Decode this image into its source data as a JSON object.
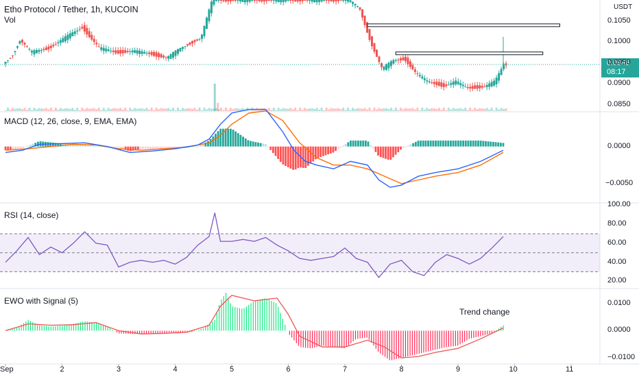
{
  "header": {
    "title": "Etho Protocol / Tether, 1h, KUCOIN",
    "vol_label": "Vol",
    "currency": "USDT"
  },
  "price_tag": {
    "price": "0.0946",
    "countdown": "08:17"
  },
  "colors": {
    "up": "#26a69a",
    "down": "#ef5350",
    "macd": "#2962ff",
    "signal": "#ff6d00",
    "rsi": "#7e57c2",
    "ewo_up": "#00e676",
    "ewo_down": "#ff1744",
    "ewo_signal": "#ef5350"
  },
  "x_axis": {
    "ticks": [
      "Sep",
      "2",
      "3",
      "4",
      "5",
      "6",
      "7",
      "8",
      "9",
      "10",
      "11"
    ]
  },
  "panes": {
    "price": {
      "ticks": [
        "0.1050",
        "0.1000",
        "0.0950",
        "0.0900",
        "0.0850"
      ],
      "range": [
        0.0835,
        0.11
      ]
    },
    "macd": {
      "label": "MACD (12, 26, close, 9, EMA, EMA)",
      "ticks": [
        "0.0000",
        "−0.0050"
      ]
    },
    "rsi": {
      "label": "RSI (14, close)",
      "ticks": [
        "100.00",
        "80.00",
        "60.00",
        "40.00",
        "20.00"
      ]
    },
    "ewo": {
      "label": "EWO with Signal (5)",
      "ticks": [
        "0.0100",
        "0.0000",
        "−0.0100"
      ],
      "annotation": "Trend change"
    }
  },
  "chart_data": [
    {
      "type": "candlestick",
      "pane": "price",
      "x_range": [
        1,
        11
      ],
      "ylim": [
        0.0835,
        0.11
      ],
      "keypoints": [
        [
          1.0,
          0.0948
        ],
        [
          1.15,
          0.0965
        ],
        [
          1.3,
          0.1005
        ],
        [
          1.5,
          0.0975
        ],
        [
          1.8,
          0.0985
        ],
        [
          2.1,
          0.101
        ],
        [
          2.4,
          0.1035
        ],
        [
          2.7,
          0.0985
        ],
        [
          3.0,
          0.0975
        ],
        [
          3.3,
          0.0978
        ],
        [
          3.6,
          0.0972
        ],
        [
          3.9,
          0.0962
        ],
        [
          4.2,
          0.099
        ],
        [
          4.5,
          0.101
        ],
        [
          4.7,
          0.11
        ],
        [
          5.0,
          0.11
        ],
        [
          5.4,
          0.11
        ],
        [
          5.8,
          0.11
        ],
        [
          6.2,
          0.11
        ],
        [
          6.5,
          0.11
        ],
        [
          6.8,
          0.11
        ],
        [
          7.1,
          0.11
        ],
        [
          7.3,
          0.108
        ],
        [
          7.4,
          0.104
        ],
        [
          7.5,
          0.1
        ],
        [
          7.7,
          0.0935
        ],
        [
          7.9,
          0.0955
        ],
        [
          8.1,
          0.096
        ],
        [
          8.3,
          0.0925
        ],
        [
          8.5,
          0.0905
        ],
        [
          8.8,
          0.0895
        ],
        [
          9.0,
          0.0905
        ],
        [
          9.2,
          0.089
        ],
        [
          9.5,
          0.0893
        ],
        [
          9.7,
          0.0905
        ],
        [
          9.85,
          0.0946
        ]
      ],
      "volume_spike_x": 4.7,
      "last_price": 0.0946,
      "annotations": [
        {
          "type": "rectangle",
          "x": [
            7.4,
            10.8
          ],
          "y": [
            0.1043,
            0.1039
          ]
        },
        {
          "type": "rectangle",
          "x": [
            7.9,
            10.5
          ],
          "y": [
            0.0976,
            0.0972
          ]
        }
      ]
    },
    {
      "type": "line",
      "pane": "macd",
      "ylim": [
        -0.0075,
        0.0045
      ],
      "series": [
        {
          "name": "MACD",
          "x": [
            1.0,
            1.3,
            1.6,
            2.0,
            2.4,
            2.8,
            3.2,
            3.6,
            4.0,
            4.4,
            4.6,
            4.8,
            5.0,
            5.3,
            5.6,
            5.9,
            6.1,
            6.3,
            6.5,
            6.8,
            7.1,
            7.4,
            7.6,
            7.8,
            8.0,
            8.3,
            8.6,
            9.0,
            9.4,
            9.8
          ],
          "values": [
            -0.0008,
            -0.0005,
            0.0003,
            0.0004,
            0.0005,
            0.0,
            -0.0008,
            -0.0006,
            -0.0003,
            0.0002,
            0.001,
            0.003,
            0.0045,
            0.005,
            0.005,
            0.002,
            -0.0005,
            -0.002,
            -0.0025,
            -0.003,
            -0.002,
            -0.0025,
            -0.0045,
            -0.0055,
            -0.0052,
            -0.004,
            -0.0035,
            -0.003,
            -0.002,
            -0.0005
          ]
        },
        {
          "name": "Signal",
          "x": [
            1.0,
            1.4,
            1.8,
            2.2,
            2.6,
            3.0,
            3.4,
            3.8,
            4.2,
            4.6,
            4.8,
            5.0,
            5.3,
            5.6,
            5.9,
            6.2,
            6.5,
            6.8,
            7.1,
            7.4,
            7.7,
            8.0,
            8.3,
            8.6,
            9.0,
            9.4,
            9.8
          ],
          "values": [
            -0.0005,
            -0.0003,
            0.0,
            0.0003,
            0.0002,
            -0.0003,
            -0.0005,
            -0.0003,
            -0.0001,
            0.0005,
            0.0015,
            0.003,
            0.0045,
            0.0048,
            0.0035,
            0.0005,
            -0.0015,
            -0.0025,
            -0.0025,
            -0.003,
            -0.004,
            -0.005,
            -0.0045,
            -0.004,
            -0.0035,
            -0.0025,
            -0.0008
          ]
        }
      ]
    },
    {
      "type": "line",
      "pane": "rsi",
      "ylim": [
        13,
        101
      ],
      "band": [
        30,
        70
      ],
      "series": [
        {
          "name": "RSI",
          "x": [
            1.0,
            1.2,
            1.4,
            1.6,
            1.8,
            2.0,
            2.2,
            2.4,
            2.6,
            2.8,
            3.0,
            3.2,
            3.4,
            3.6,
            3.8,
            4.0,
            4.2,
            4.4,
            4.6,
            4.7,
            4.8,
            5.0,
            5.2,
            5.4,
            5.6,
            5.8,
            6.0,
            6.2,
            6.4,
            6.6,
            6.8,
            7.0,
            7.2,
            7.4,
            7.6,
            7.8,
            8.0,
            8.2,
            8.4,
            8.6,
            8.8,
            9.0,
            9.2,
            9.4,
            9.6,
            9.8
          ],
          "values": [
            40,
            52,
            66,
            48,
            56,
            50,
            60,
            72,
            60,
            58,
            35,
            40,
            42,
            40,
            42,
            38,
            45,
            58,
            67,
            92,
            62,
            62,
            64,
            62,
            66,
            58,
            52,
            44,
            42,
            44,
            46,
            55,
            44,
            40,
            24,
            38,
            42,
            30,
            26,
            40,
            48,
            44,
            38,
            44,
            55,
            67
          ]
        }
      ]
    },
    {
      "type": "bar",
      "pane": "ewo",
      "ylim": [
        -0.012,
        0.015
      ],
      "series": [
        {
          "name": "EWO",
          "x": [
            1.0,
            1.2,
            1.4,
            1.6,
            1.8,
            2.0,
            2.2,
            2.4,
            2.6,
            2.8,
            3.0,
            3.3,
            3.6,
            4.0,
            4.3,
            4.5,
            4.7,
            4.8,
            4.9,
            5.0,
            5.2,
            5.4,
            5.6,
            5.8,
            6.0,
            6.2,
            6.4,
            6.6,
            6.8,
            7.0,
            7.2,
            7.4,
            7.6,
            7.8,
            8.0,
            8.2,
            8.4,
            8.6,
            8.8,
            9.0,
            9.2,
            9.4,
            9.6,
            9.8
          ],
          "values": [
            0.0,
            0.001,
            0.004,
            0.002,
            0.0015,
            0.0018,
            0.0025,
            0.0035,
            0.003,
            0.0015,
            -0.001,
            -0.0012,
            -0.0012,
            -0.0008,
            -0.0004,
            0.001,
            0.004,
            0.011,
            0.014,
            0.009,
            0.008,
            0.011,
            0.012,
            0.01,
            -0.001,
            -0.006,
            -0.0065,
            -0.0055,
            -0.006,
            -0.0065,
            -0.003,
            -0.0025,
            -0.008,
            -0.011,
            -0.01,
            -0.009,
            -0.008,
            -0.007,
            -0.006,
            -0.0055,
            -0.003,
            -0.002,
            -0.001,
            0.002
          ]
        },
        {
          "name": "Signal",
          "x": [
            1.0,
            1.4,
            1.8,
            2.2,
            2.6,
            3.0,
            3.4,
            3.8,
            4.2,
            4.6,
            4.8,
            5.0,
            5.4,
            5.8,
            6.0,
            6.2,
            6.6,
            7.0,
            7.4,
            7.7,
            8.0,
            8.3,
            8.6,
            9.0,
            9.4,
            9.8
          ],
          "values": [
            0.0,
            0.0025,
            0.002,
            0.0022,
            0.003,
            0.0,
            -0.0012,
            -0.001,
            -0.0006,
            0.002,
            0.009,
            0.013,
            0.011,
            0.012,
            0.006,
            -0.002,
            -0.006,
            -0.006,
            -0.0035,
            -0.006,
            -0.01,
            -0.0095,
            -0.008,
            -0.0065,
            -0.003,
            0.001
          ]
        }
      ]
    }
  ]
}
